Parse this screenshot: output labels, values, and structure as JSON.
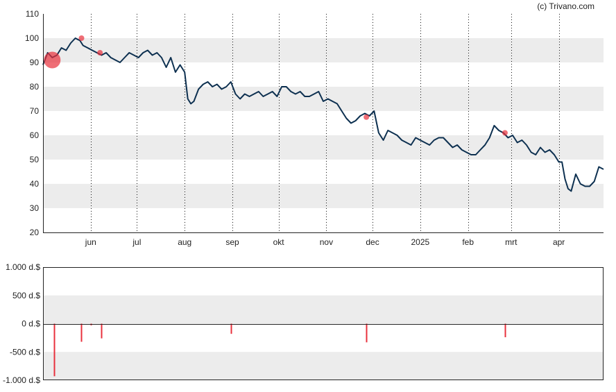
{
  "credit": "(c) Trivano.com",
  "colors": {
    "price_line": "#0d3050",
    "insider_marker": "#e8303c",
    "band": "#ececec",
    "grid_vertical": "#111111",
    "axis": "#222222"
  },
  "chart_data": [
    {
      "type": "line",
      "x_tick_labels": [
        "jun",
        "jul",
        "aug",
        "sep",
        "okt",
        "nov",
        "dec",
        "2025",
        "feb",
        "mrt",
        "apr"
      ],
      "x_ticks": [
        "2024-06-01",
        "2024-07-01",
        "2024-08-01",
        "2024-09-01",
        "2024-10-01",
        "2024-11-01",
        "2024-12-01",
        "2025-01-01",
        "2025-02-01",
        "2025-03-01",
        "2025-04-01"
      ],
      "xlim": [
        "2024-05-01",
        "2025-04-30"
      ],
      "ylim": [
        20,
        110
      ],
      "y_ticks": [
        20,
        30,
        40,
        50,
        60,
        70,
        80,
        90,
        100,
        110
      ],
      "grid": "alternating horizontal bands, dotted vertical month lines",
      "series": [
        {
          "x": [
            "2024-05-01",
            "2024-05-04",
            "2024-05-07",
            "2024-05-10",
            "2024-05-13",
            "2024-05-16",
            "2024-05-19",
            "2024-05-22",
            "2024-05-25",
            "2024-05-27",
            "2024-05-30",
            "2024-06-02",
            "2024-06-05",
            "2024-06-08",
            "2024-06-11",
            "2024-06-14",
            "2024-06-17",
            "2024-06-20",
            "2024-06-23",
            "2024-06-26",
            "2024-06-29",
            "2024-07-02",
            "2024-07-05",
            "2024-07-08",
            "2024-07-11",
            "2024-07-14",
            "2024-07-17",
            "2024-07-20",
            "2024-07-23",
            "2024-07-26",
            "2024-07-29",
            "2024-08-01",
            "2024-08-03",
            "2024-08-05",
            "2024-08-07",
            "2024-08-10",
            "2024-08-13",
            "2024-08-16",
            "2024-08-19",
            "2024-08-22",
            "2024-08-25",
            "2024-08-28",
            "2024-08-31",
            "2024-09-03",
            "2024-09-06",
            "2024-09-09",
            "2024-09-12",
            "2024-09-15",
            "2024-09-18",
            "2024-09-21",
            "2024-09-24",
            "2024-09-27",
            "2024-09-30",
            "2024-10-03",
            "2024-10-06",
            "2024-10-09",
            "2024-10-12",
            "2024-10-15",
            "2024-10-18",
            "2024-10-21",
            "2024-10-24",
            "2024-10-27",
            "2024-10-30",
            "2024-11-02",
            "2024-11-05",
            "2024-11-08",
            "2024-11-11",
            "2024-11-14",
            "2024-11-17",
            "2024-11-20",
            "2024-11-23",
            "2024-11-26",
            "2024-11-29",
            "2024-12-02",
            "2024-12-05",
            "2024-12-08",
            "2024-12-11",
            "2024-12-14",
            "2024-12-17",
            "2024-12-20",
            "2024-12-23",
            "2024-12-26",
            "2024-12-29",
            "2025-01-01",
            "2025-01-04",
            "2025-01-07",
            "2025-01-10",
            "2025-01-13",
            "2025-01-16",
            "2025-01-19",
            "2025-01-22",
            "2025-01-25",
            "2025-01-28",
            "2025-01-31",
            "2025-02-03",
            "2025-02-06",
            "2025-02-09",
            "2025-02-12",
            "2025-02-15",
            "2025-02-18",
            "2025-02-21",
            "2025-02-24",
            "2025-02-27",
            "2025-03-02",
            "2025-03-05",
            "2025-03-08",
            "2025-03-11",
            "2025-03-14",
            "2025-03-17",
            "2025-03-20",
            "2025-03-23",
            "2025-03-26",
            "2025-03-29",
            "2025-04-01",
            "2025-04-03",
            "2025-04-05",
            "2025-04-07",
            "2025-04-09",
            "2025-04-12",
            "2025-04-15",
            "2025-04-18",
            "2025-04-21",
            "2025-04-24",
            "2025-04-27",
            "2025-04-30"
          ],
          "values": [
            89,
            94,
            92,
            93,
            96,
            95,
            98,
            100,
            99,
            97,
            96,
            95,
            94,
            93,
            94,
            92,
            91,
            90,
            92,
            94,
            93,
            92,
            94,
            95,
            93,
            94,
            92,
            88,
            92,
            86,
            89,
            86,
            75,
            73,
            74,
            79,
            81,
            82,
            80,
            81,
            79,
            80,
            82,
            77,
            75,
            77,
            76,
            77,
            78,
            76,
            77,
            78,
            76,
            80,
            80,
            78,
            77,
            78,
            76,
            76,
            77,
            78,
            74,
            75,
            74,
            73,
            70,
            67,
            65,
            66,
            68,
            69,
            68,
            70,
            61,
            58,
            62,
            61,
            60,
            58,
            57,
            56,
            59,
            58,
            57,
            56,
            58,
            59,
            59,
            57,
            55,
            56,
            54,
            53,
            52,
            52,
            54,
            56,
            59,
            64,
            62,
            61,
            59,
            60,
            57,
            58,
            56,
            53,
            52,
            55,
            53,
            54,
            52,
            49,
            49,
            42,
            38,
            37,
            44,
            40,
            39,
            39,
            41,
            47,
            46
          ],
          "marker_color": "#0d3050"
        }
      ],
      "annotations": [
        {
          "x": "2024-05-07",
          "y": 91,
          "size": "large"
        },
        {
          "x": "2024-05-26",
          "y": 100,
          "size": "small"
        },
        {
          "x": "2024-06-07",
          "y": 94,
          "size": "small"
        },
        {
          "x": "2024-11-27",
          "y": 67.5,
          "size": "small"
        },
        {
          "x": "2025-02-25",
          "y": 61,
          "size": "small"
        }
      ]
    },
    {
      "type": "bar",
      "xlim": [
        "2024-05-01",
        "2025-04-30"
      ],
      "ylim": [
        -1000,
        1000
      ],
      "y_ticks": [
        1000,
        500,
        0,
        -500,
        -1000
      ],
      "y_tick_labels": [
        "1.000 d.$",
        "500 d.$",
        "0 d.$",
        "-500 d.$",
        "-1.000 d.$"
      ],
      "grid": "alternating horizontal bands",
      "x": [
        "2024-05-08",
        "2024-05-26",
        "2024-06-01",
        "2024-06-08",
        "2024-08-31",
        "2024-11-27",
        "2025-02-25"
      ],
      "values": [
        -930,
        -320,
        -30,
        -260,
        -180,
        -330,
        -240
      ]
    }
  ]
}
